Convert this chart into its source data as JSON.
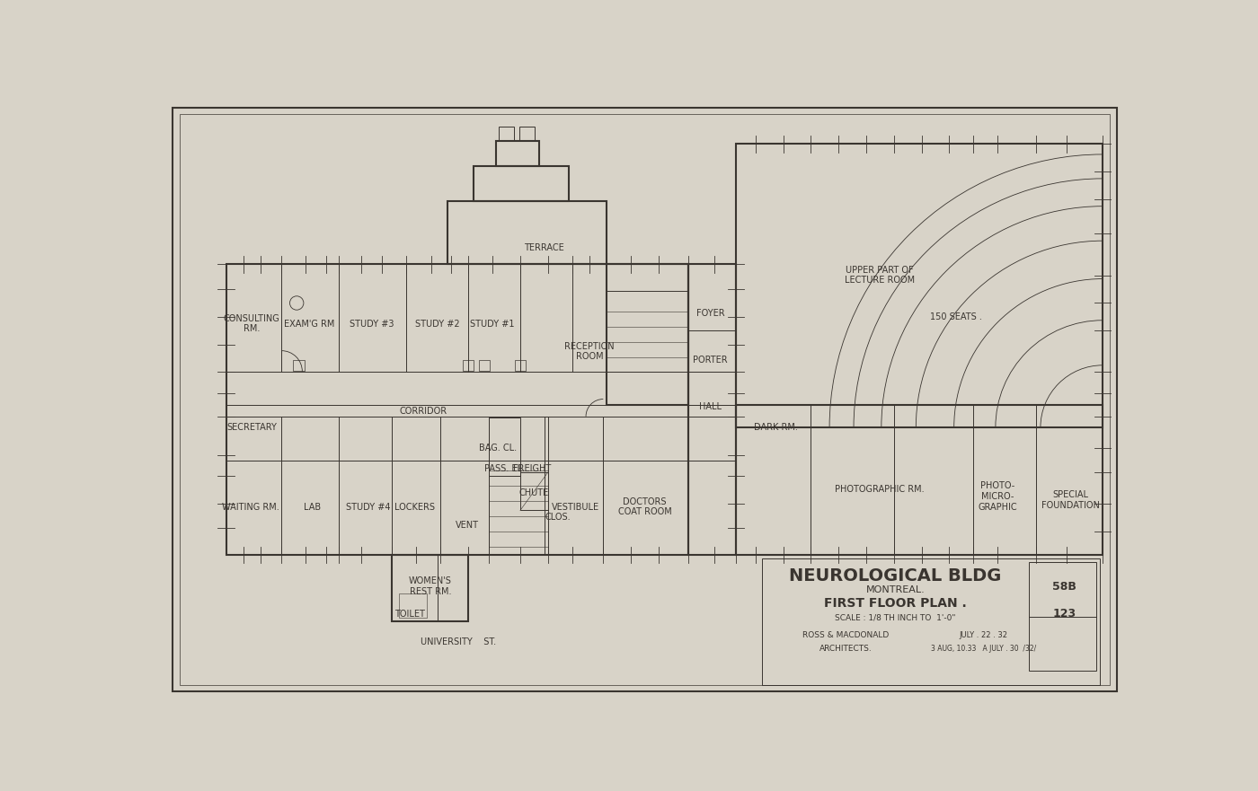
{
  "paper_color": "#d8d3c8",
  "line_color": "#3a3530",
  "lw_thick": 1.5,
  "lw_thin": 0.7,
  "lw_tick": 0.6,
  "title_block": {
    "main_title": "NEUROLOGICAL BLDG",
    "subtitle": "MONTREAL.",
    "plan_title": "FIRST FLOOR PLAN .",
    "scale": "SCALE : 1/8 TH INCH TO  1'-0\"",
    "firm": "ROSS & MACDONALD",
    "role": "ARCHITECTS.",
    "date": "JULY . 22 . 32",
    "date2": "3 AUG, 10.33   A JULY . 30  /32/",
    "sheet": "58B",
    "num": "123"
  }
}
